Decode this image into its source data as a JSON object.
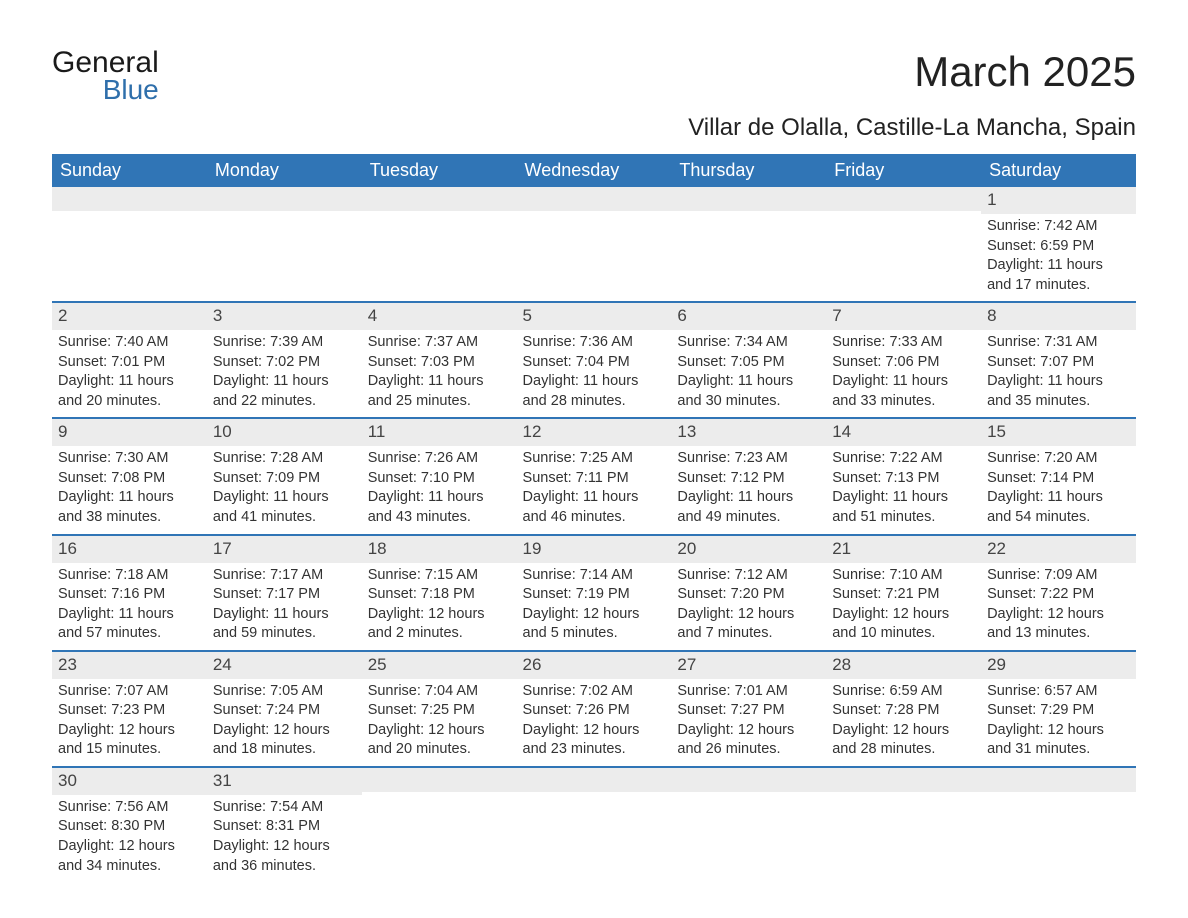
{
  "logo": {
    "text_general": "General",
    "text_blue": "Blue",
    "shape_color": "#2f6fab"
  },
  "header": {
    "month_title": "March 2025",
    "location": "Villar de Olalla, Castille-La Mancha, Spain"
  },
  "style": {
    "header_bg": "#3075b6",
    "header_text": "#ffffff",
    "row_separator": "#3075b6",
    "daynum_bg": "#ececec",
    "body_text": "#333333",
    "page_bg": "#ffffff",
    "title_fontsize": 42,
    "subtitle_fontsize": 24,
    "header_fontsize": 18,
    "cell_fontsize": 14.5,
    "daynum_fontsize": 17
  },
  "calendar": {
    "columns": [
      "Sunday",
      "Monday",
      "Tuesday",
      "Wednesday",
      "Thursday",
      "Friday",
      "Saturday"
    ],
    "weeks": [
      [
        null,
        null,
        null,
        null,
        null,
        null,
        {
          "n": "1",
          "sunrise": "7:42 AM",
          "sunset": "6:59 PM",
          "day_h": "11",
          "day_m": "17"
        }
      ],
      [
        {
          "n": "2",
          "sunrise": "7:40 AM",
          "sunset": "7:01 PM",
          "day_h": "11",
          "day_m": "20"
        },
        {
          "n": "3",
          "sunrise": "7:39 AM",
          "sunset": "7:02 PM",
          "day_h": "11",
          "day_m": "22"
        },
        {
          "n": "4",
          "sunrise": "7:37 AM",
          "sunset": "7:03 PM",
          "day_h": "11",
          "day_m": "25"
        },
        {
          "n": "5",
          "sunrise": "7:36 AM",
          "sunset": "7:04 PM",
          "day_h": "11",
          "day_m": "28"
        },
        {
          "n": "6",
          "sunrise": "7:34 AM",
          "sunset": "7:05 PM",
          "day_h": "11",
          "day_m": "30"
        },
        {
          "n": "7",
          "sunrise": "7:33 AM",
          "sunset": "7:06 PM",
          "day_h": "11",
          "day_m": "33"
        },
        {
          "n": "8",
          "sunrise": "7:31 AM",
          "sunset": "7:07 PM",
          "day_h": "11",
          "day_m": "35"
        }
      ],
      [
        {
          "n": "9",
          "sunrise": "7:30 AM",
          "sunset": "7:08 PM",
          "day_h": "11",
          "day_m": "38"
        },
        {
          "n": "10",
          "sunrise": "7:28 AM",
          "sunset": "7:09 PM",
          "day_h": "11",
          "day_m": "41"
        },
        {
          "n": "11",
          "sunrise": "7:26 AM",
          "sunset": "7:10 PM",
          "day_h": "11",
          "day_m": "43"
        },
        {
          "n": "12",
          "sunrise": "7:25 AM",
          "sunset": "7:11 PM",
          "day_h": "11",
          "day_m": "46"
        },
        {
          "n": "13",
          "sunrise": "7:23 AM",
          "sunset": "7:12 PM",
          "day_h": "11",
          "day_m": "49"
        },
        {
          "n": "14",
          "sunrise": "7:22 AM",
          "sunset": "7:13 PM",
          "day_h": "11",
          "day_m": "51"
        },
        {
          "n": "15",
          "sunrise": "7:20 AM",
          "sunset": "7:14 PM",
          "day_h": "11",
          "day_m": "54"
        }
      ],
      [
        {
          "n": "16",
          "sunrise": "7:18 AM",
          "sunset": "7:16 PM",
          "day_h": "11",
          "day_m": "57"
        },
        {
          "n": "17",
          "sunrise": "7:17 AM",
          "sunset": "7:17 PM",
          "day_h": "11",
          "day_m": "59"
        },
        {
          "n": "18",
          "sunrise": "7:15 AM",
          "sunset": "7:18 PM",
          "day_h": "12",
          "day_m": "2"
        },
        {
          "n": "19",
          "sunrise": "7:14 AM",
          "sunset": "7:19 PM",
          "day_h": "12",
          "day_m": "5"
        },
        {
          "n": "20",
          "sunrise": "7:12 AM",
          "sunset": "7:20 PM",
          "day_h": "12",
          "day_m": "7"
        },
        {
          "n": "21",
          "sunrise": "7:10 AM",
          "sunset": "7:21 PM",
          "day_h": "12",
          "day_m": "10"
        },
        {
          "n": "22",
          "sunrise": "7:09 AM",
          "sunset": "7:22 PM",
          "day_h": "12",
          "day_m": "13"
        }
      ],
      [
        {
          "n": "23",
          "sunrise": "7:07 AM",
          "sunset": "7:23 PM",
          "day_h": "12",
          "day_m": "15"
        },
        {
          "n": "24",
          "sunrise": "7:05 AM",
          "sunset": "7:24 PM",
          "day_h": "12",
          "day_m": "18"
        },
        {
          "n": "25",
          "sunrise": "7:04 AM",
          "sunset": "7:25 PM",
          "day_h": "12",
          "day_m": "20"
        },
        {
          "n": "26",
          "sunrise": "7:02 AM",
          "sunset": "7:26 PM",
          "day_h": "12",
          "day_m": "23"
        },
        {
          "n": "27",
          "sunrise": "7:01 AM",
          "sunset": "7:27 PM",
          "day_h": "12",
          "day_m": "26"
        },
        {
          "n": "28",
          "sunrise": "6:59 AM",
          "sunset": "7:28 PM",
          "day_h": "12",
          "day_m": "28"
        },
        {
          "n": "29",
          "sunrise": "6:57 AM",
          "sunset": "7:29 PM",
          "day_h": "12",
          "day_m": "31"
        }
      ],
      [
        {
          "n": "30",
          "sunrise": "7:56 AM",
          "sunset": "8:30 PM",
          "day_h": "12",
          "day_m": "34"
        },
        {
          "n": "31",
          "sunrise": "7:54 AM",
          "sunset": "8:31 PM",
          "day_h": "12",
          "day_m": "36"
        },
        null,
        null,
        null,
        null,
        null
      ]
    ],
    "labels": {
      "sunrise": "Sunrise:",
      "sunset": "Sunset:",
      "daylight_prefix": "Daylight:",
      "hours_word": "hours",
      "and_word": "and",
      "minutes_word": "minutes."
    }
  }
}
